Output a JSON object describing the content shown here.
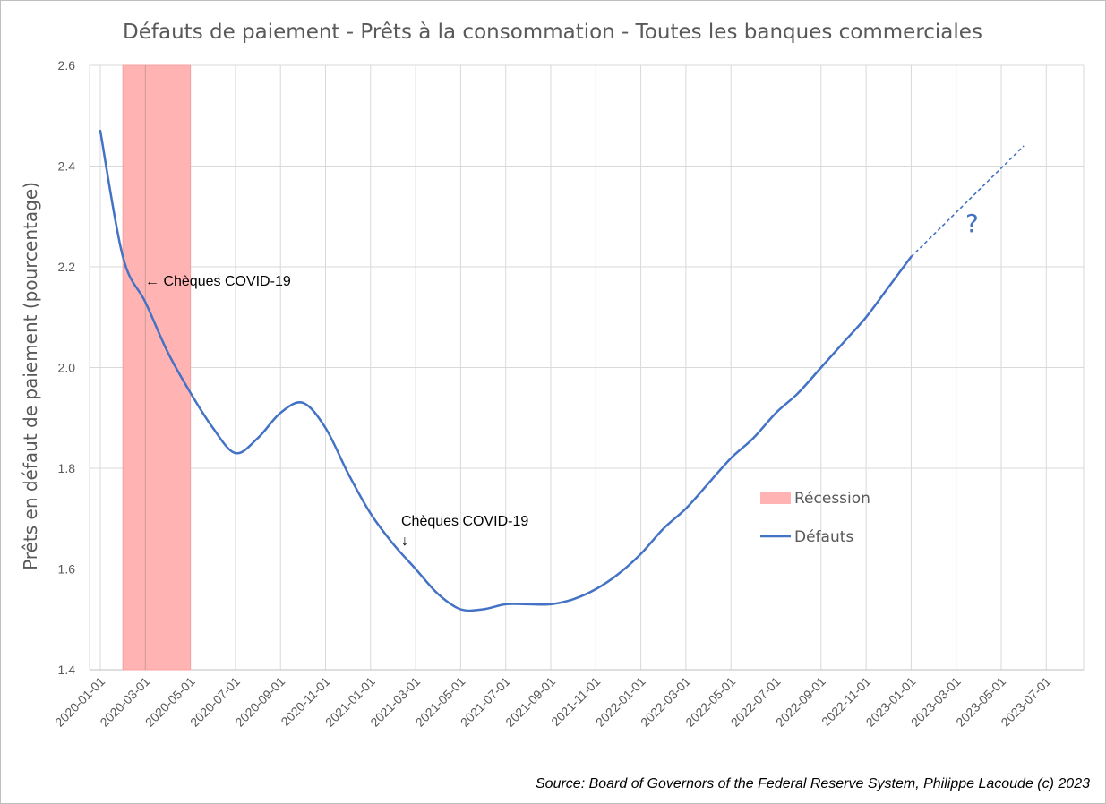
{
  "chart_data": {
    "type": "line",
    "title": "Défauts de paiement - Prêts à la consommation - Toutes les banques commerciales",
    "ylabel": "Prêts en défaut de paiement (pourcentage)",
    "xlabel": "",
    "ylim": [
      1.4,
      2.6
    ],
    "yticks": [
      "1.4",
      "1.6",
      "1.8",
      "2.0",
      "2.2",
      "2.4",
      "2.6"
    ],
    "xticks": [
      "2020-01-01",
      "2020-03-01",
      "2020-05-01",
      "2020-07-01",
      "2020-09-01",
      "2020-11-01",
      "2021-01-01",
      "2021-03-01",
      "2021-05-01",
      "2021-07-01",
      "2021-09-01",
      "2021-11-01",
      "2022-01-01",
      "2022-03-01",
      "2022-05-01",
      "2022-07-01",
      "2022-09-01",
      "2022-11-01",
      "2023-01-01",
      "2023-03-01",
      "2023-05-01",
      "2023-07-01"
    ],
    "grid": true,
    "series": [
      {
        "name": "Défauts",
        "color": "#4472c4",
        "points": [
          [
            "2020-01-01",
            2.47
          ],
          [
            "2020-02-01",
            2.22
          ],
          [
            "2020-03-01",
            2.13
          ],
          [
            "2020-04-01",
            2.03
          ],
          [
            "2020-05-01",
            1.95
          ],
          [
            "2020-06-01",
            1.88
          ],
          [
            "2020-07-01",
            1.83
          ],
          [
            "2020-08-01",
            1.86
          ],
          [
            "2020-09-01",
            1.91
          ],
          [
            "2020-10-01",
            1.93
          ],
          [
            "2020-11-01",
            1.88
          ],
          [
            "2020-12-01",
            1.79
          ],
          [
            "2021-01-01",
            1.71
          ],
          [
            "2021-02-01",
            1.65
          ],
          [
            "2021-03-01",
            1.6
          ],
          [
            "2021-04-01",
            1.55
          ],
          [
            "2021-05-01",
            1.52
          ],
          [
            "2021-06-01",
            1.52
          ],
          [
            "2021-07-01",
            1.53
          ],
          [
            "2021-08-01",
            1.53
          ],
          [
            "2021-09-01",
            1.53
          ],
          [
            "2021-10-01",
            1.54
          ],
          [
            "2021-11-01",
            1.56
          ],
          [
            "2021-12-01",
            1.59
          ],
          [
            "2022-01-01",
            1.63
          ],
          [
            "2022-02-01",
            1.68
          ],
          [
            "2022-03-01",
            1.72
          ],
          [
            "2022-04-01",
            1.77
          ],
          [
            "2022-05-01",
            1.82
          ],
          [
            "2022-06-01",
            1.86
          ],
          [
            "2022-07-01",
            1.91
          ],
          [
            "2022-08-01",
            1.95
          ],
          [
            "2022-09-01",
            2.0
          ],
          [
            "2022-10-01",
            2.05
          ],
          [
            "2022-11-01",
            2.1
          ],
          [
            "2022-12-01",
            2.16
          ],
          [
            "2023-01-01",
            2.22
          ]
        ]
      },
      {
        "name": "",
        "style": "dashed",
        "color": "#4472c4",
        "points": [
          [
            "2023-01-01",
            2.22
          ],
          [
            "2023-06-01",
            2.44
          ]
        ]
      }
    ],
    "recession": {
      "label": "Récession",
      "start": "2020-02-01",
      "end": "2020-05-01",
      "color": "#ffb3b3"
    },
    "legend": {
      "position": "center-right",
      "entries": [
        "Récession",
        "Défauts"
      ]
    },
    "annotations": [
      {
        "text": "← Chèques COVID-19",
        "at": "2020-03-01"
      },
      {
        "text": "Chèques COVID-19",
        "arrow": "↓",
        "at": "2021-03-01"
      },
      {
        "text": "?",
        "at": "2023-04-01"
      }
    ],
    "source": "Source: Board of Governors of the Federal Reserve System, Philippe Lacoude (c) 2023"
  }
}
